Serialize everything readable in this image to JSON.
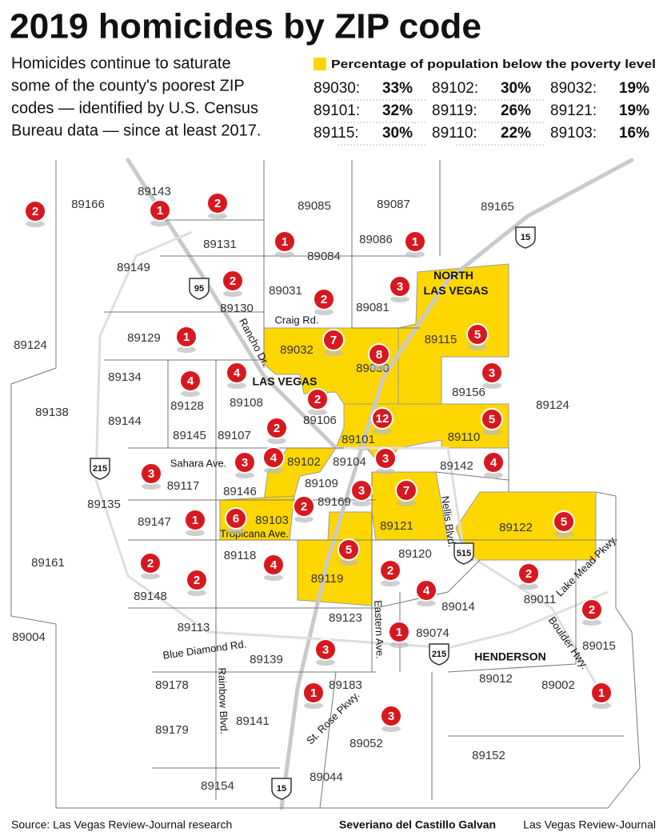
{
  "title": "2019 homicides by ZIP code",
  "intro": [
    "Homicides continue to saturate",
    "some of the county's poorest ZIP",
    "codes — identified by U.S. Census",
    "Bureau data — since at least 2017."
  ],
  "legend": {
    "title": "Percentage of population below the poverty level",
    "rows": [
      {
        "zip": "89030:",
        "pct": "33%"
      },
      {
        "zip": "89102:",
        "pct": "30%"
      },
      {
        "zip": "89032:",
        "pct": "19%"
      },
      {
        "zip": "89101:",
        "pct": "32%"
      },
      {
        "zip": "89119:",
        "pct": "26%"
      },
      {
        "zip": "89121:",
        "pct": "19%"
      },
      {
        "zip": "89115:",
        "pct": "30%"
      },
      {
        "zip": "89110:",
        "pct": "22%"
      },
      {
        "zip": "89103:",
        "pct": "16%"
      }
    ]
  },
  "zips": [
    "89143",
    "89166",
    "89131",
    "89085",
    "89087",
    "89165",
    "89086",
    "89084",
    "89149",
    "89031",
    "89081",
    "89130",
    "89129",
    "89124",
    "89032",
    "89115",
    "89134",
    "89128",
    "89108",
    "89030",
    "89156",
    "89124",
    "89138",
    "89144",
    "89106",
    "89145",
    "89107",
    "89101",
    "89110",
    "89102",
    "89104",
    "89142",
    "89117",
    "89146",
    "89109",
    "89169",
    "89135",
    "89147",
    "89103",
    "89121",
    "89122",
    "89161",
    "89118",
    "89120",
    "89119",
    "89148",
    "89011",
    "89014",
    "89113",
    "89123",
    "89074",
    "89004",
    "89015",
    "89139",
    "89012",
    "89002",
    "89178",
    "89183",
    "89141",
    "89179",
    "89052",
    "89152",
    "89154",
    "89044"
  ],
  "homicides": [
    2,
    1,
    2,
    1,
    1,
    2,
    3,
    2,
    1,
    7,
    5,
    8,
    4,
    4,
    3,
    2,
    12,
    5,
    2,
    3,
    4,
    3,
    4,
    3,
    3,
    7,
    2,
    1,
    6,
    5,
    5,
    2,
    4,
    2,
    2,
    4,
    2,
    2,
    1,
    3,
    1,
    3,
    1
  ],
  "roads": [
    "Rancho Dr.",
    "Craig Rd.",
    "Sahara Ave.",
    "Tropicana Ave.",
    "Nellis Blvd.",
    "Lake Mead Pkwy.",
    "Blue Diamond Rd.",
    "Rainbow Blvd.",
    "Eastern Ave.",
    "Boulder Hwy.",
    "St. Rose Pkwy."
  ],
  "highways": [
    "95",
    "15",
    "215",
    "515",
    "215",
    "15"
  ],
  "places": [
    "NORTH LAS VEGAS",
    "LAS VEGAS",
    "HENDERSON"
  ],
  "source": "Source: Las Vegas Review-Journal research",
  "credit": {
    "author": "Severiano del Castillo Galvan",
    "publisher": "Las Vegas Review-Journal"
  }
}
